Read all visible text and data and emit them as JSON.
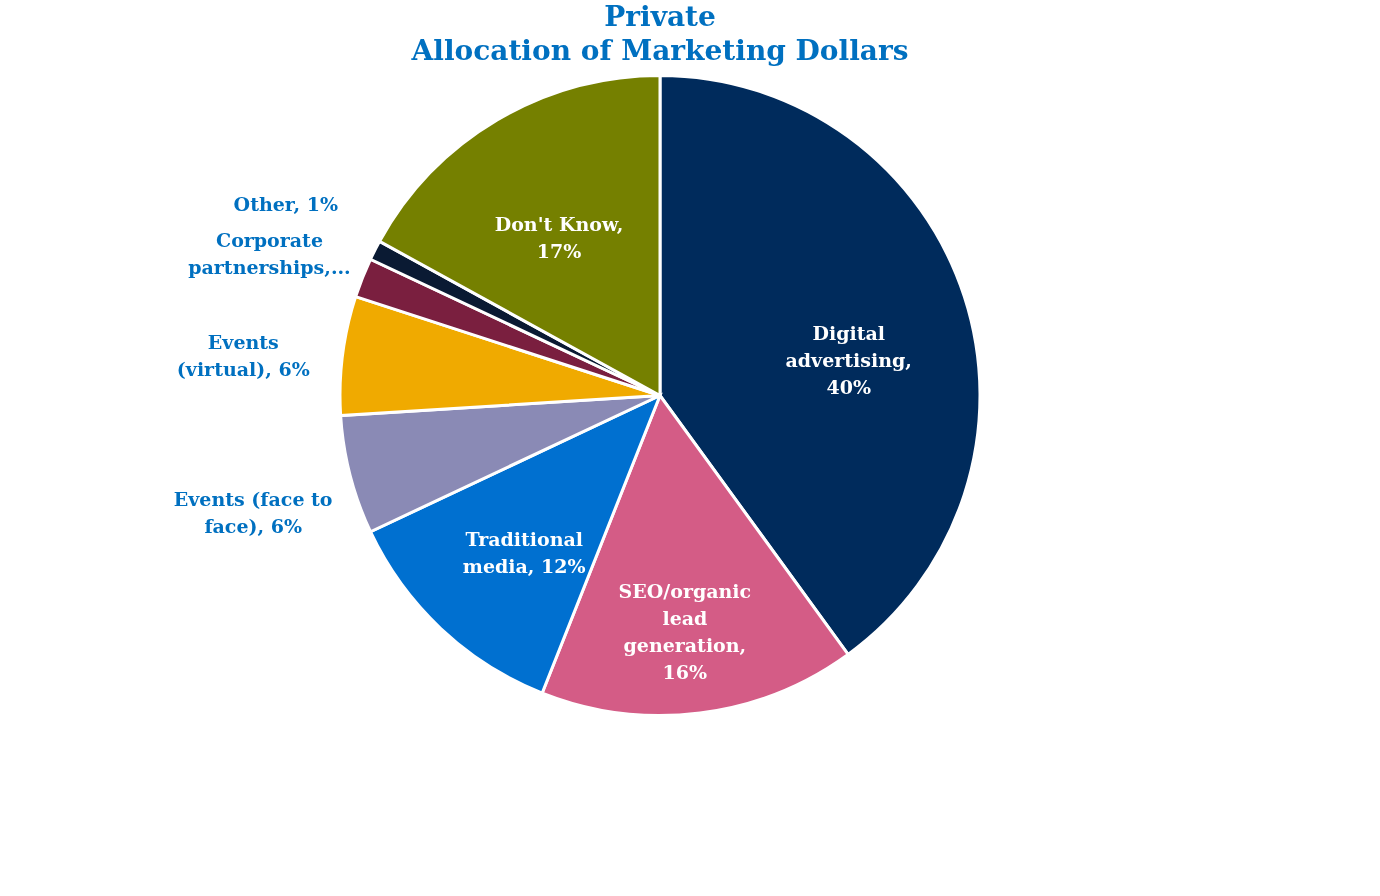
{
  "chart_data": {
    "type": "pie",
    "title": "Private",
    "subtitle": "Allocation of Marketing Dollars",
    "categories": [
      "Digital advertising, 40%",
      "SEO/organic lead generation, 16%",
      "Traditional media, 12%",
      "Events (face to face), 6%",
      "Events (virtual), 6%",
      "Corporate partnerships,...",
      "Other, 1%",
      "Don't Know, 17%"
    ],
    "values": [
      40,
      16,
      12,
      6,
      6,
      2,
      1,
      17
    ],
    "colors": [
      "#002b5c",
      "#d45c86",
      "#0070d0",
      "#8a8ab5",
      "#f0aa00",
      "#7a1f3f",
      "#0a1a33",
      "#758000"
    ],
    "legend": false
  }
}
